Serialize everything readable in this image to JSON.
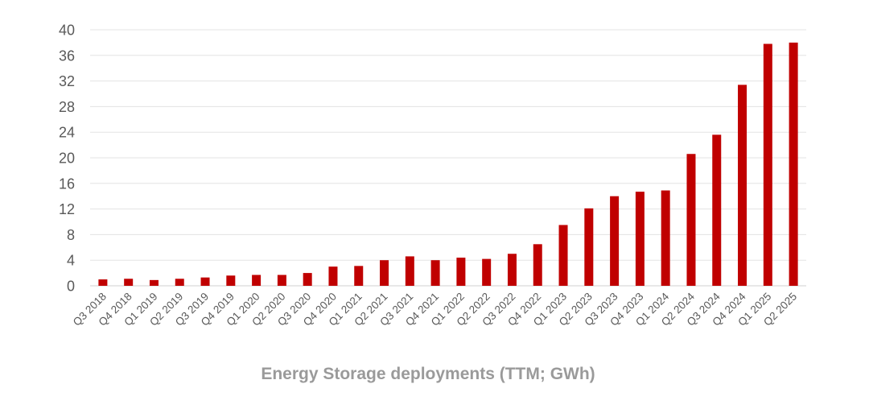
{
  "chart_data": {
    "type": "bar",
    "title": "",
    "xlabel": "Energy Storage deployments (TTM; GWh)",
    "ylabel": "",
    "ylim": [
      0,
      40
    ],
    "yticks": [
      "0",
      "4",
      "8",
      "12",
      "16",
      "20",
      "24",
      "28",
      "32",
      "36",
      "40"
    ],
    "grid": true,
    "legend": "none",
    "bar_color": "#c00000",
    "categories": [
      "Q3 2018",
      "Q4 2018",
      "Q1 2019",
      "Q2 2019",
      "Q3 2019",
      "Q4 2019",
      "Q1 2020",
      "Q2 2020",
      "Q3 2020",
      "Q4 2020",
      "Q1 2021",
      "Q2 2021",
      "Q3 2021",
      "Q4 2021",
      "Q1 2022",
      "Q2 2022",
      "Q3 2022",
      "Q4 2022",
      "Q1 2023",
      "Q2 2023",
      "Q3 2023",
      "Q4 2023",
      "Q1 2024",
      "Q2 2024",
      "Q3 2024",
      "Q4 2024",
      "Q1 2025",
      "Q2 2025"
    ],
    "values": [
      1.0,
      1.1,
      0.9,
      1.1,
      1.3,
      1.6,
      1.7,
      1.7,
      2.0,
      3.0,
      3.1,
      4.0,
      4.6,
      4.0,
      4.4,
      4.2,
      5.0,
      6.5,
      9.5,
      12.1,
      14.0,
      14.7,
      14.9,
      20.6,
      23.6,
      31.4,
      37.8,
      38.0
    ]
  }
}
